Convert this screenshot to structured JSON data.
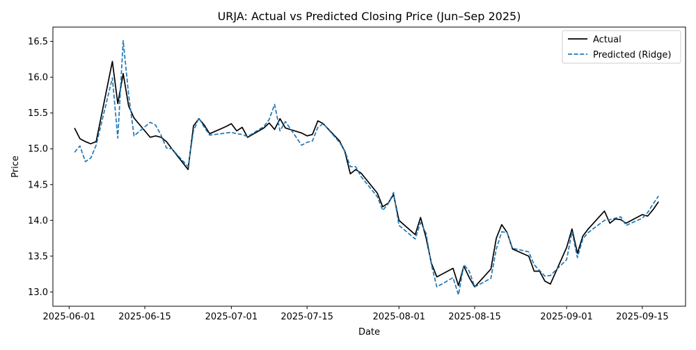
{
  "chart_data": {
    "type": "line",
    "title": "URJA: Actual vs Predicted Closing Price (Jun–Sep 2025)",
    "xlabel": "Date",
    "ylabel": "Price",
    "x_range": [
      "2025-05-29",
      "2025-09-23"
    ],
    "ylim": [
      12.8,
      16.7
    ],
    "grid": false,
    "legend_position": "top-right",
    "x_ticks": [
      {
        "date": "2025-06-01",
        "label": "2025-06-01"
      },
      {
        "date": "2025-06-15",
        "label": "2025-06-15"
      },
      {
        "date": "2025-07-01",
        "label": "2025-07-01"
      },
      {
        "date": "2025-07-15",
        "label": "2025-07-15"
      },
      {
        "date": "2025-08-01",
        "label": "2025-08-01"
      },
      {
        "date": "2025-08-15",
        "label": "2025-08-15"
      },
      {
        "date": "2025-09-01",
        "label": "2025-09-01"
      },
      {
        "date": "2025-09-15",
        "label": "2025-09-15"
      }
    ],
    "y_ticks": [
      {
        "value": 13.0,
        "label": "13.0"
      },
      {
        "value": 13.5,
        "label": "13.5"
      },
      {
        "value": 14.0,
        "label": "14.0"
      },
      {
        "value": 14.5,
        "label": "14.5"
      },
      {
        "value": 15.0,
        "label": "15.0"
      },
      {
        "value": 15.5,
        "label": "15.5"
      },
      {
        "value": 16.0,
        "label": "16.0"
      },
      {
        "value": 16.5,
        "label": "16.5"
      }
    ],
    "x": [
      "2025-06-02",
      "2025-06-03",
      "2025-06-04",
      "2025-06-05",
      "2025-06-06",
      "2025-06-09",
      "2025-06-10",
      "2025-06-11",
      "2025-06-12",
      "2025-06-13",
      "2025-06-16",
      "2025-06-17",
      "2025-06-18",
      "2025-06-19",
      "2025-06-20",
      "2025-06-23",
      "2025-06-24",
      "2025-06-25",
      "2025-06-26",
      "2025-06-27",
      "2025-06-30",
      "2025-07-01",
      "2025-07-02",
      "2025-07-03",
      "2025-07-04",
      "2025-07-07",
      "2025-07-08",
      "2025-07-09",
      "2025-07-10",
      "2025-07-11",
      "2025-07-14",
      "2025-07-15",
      "2025-07-16",
      "2025-07-17",
      "2025-07-18",
      "2025-07-21",
      "2025-07-22",
      "2025-07-23",
      "2025-07-24",
      "2025-07-25",
      "2025-07-28",
      "2025-07-29",
      "2025-07-30",
      "2025-07-31",
      "2025-08-01",
      "2025-08-04",
      "2025-08-05",
      "2025-08-06",
      "2025-08-07",
      "2025-08-08",
      "2025-08-11",
      "2025-08-12",
      "2025-08-13",
      "2025-08-14",
      "2025-08-15",
      "2025-08-18",
      "2025-08-19",
      "2025-08-20",
      "2025-08-21",
      "2025-08-22",
      "2025-08-25",
      "2025-08-26",
      "2025-08-27",
      "2025-08-28",
      "2025-08-29",
      "2025-09-01",
      "2025-09-02",
      "2025-09-03",
      "2025-09-04",
      "2025-09-05",
      "2025-09-08",
      "2025-09-09",
      "2025-09-10",
      "2025-09-11",
      "2025-09-12",
      "2025-09-15",
      "2025-09-16",
      "2025-09-17",
      "2025-09-18"
    ],
    "series": [
      {
        "name": "Actual",
        "color": "#000000",
        "style": "solid",
        "values": [
          15.29,
          15.14,
          15.1,
          15.07,
          15.1,
          16.22,
          15.63,
          16.05,
          15.6,
          15.43,
          15.16,
          15.18,
          15.16,
          15.1,
          15.0,
          14.71,
          15.32,
          15.42,
          15.33,
          15.21,
          15.31,
          15.35,
          15.25,
          15.3,
          15.16,
          15.29,
          15.36,
          15.27,
          15.42,
          15.29,
          15.22,
          15.18,
          15.2,
          15.39,
          15.35,
          15.11,
          14.96,
          14.65,
          14.71,
          14.66,
          14.38,
          14.19,
          14.24,
          14.36,
          14.0,
          13.8,
          14.04,
          13.76,
          13.4,
          13.21,
          13.33,
          13.09,
          13.36,
          13.2,
          13.07,
          13.32,
          13.75,
          13.94,
          13.83,
          13.6,
          13.5,
          13.29,
          13.29,
          13.15,
          13.11,
          13.62,
          13.88,
          13.54,
          13.78,
          13.88,
          14.13,
          13.96,
          14.02,
          14.01,
          13.96,
          14.08,
          14.06,
          14.15,
          14.26
        ]
      },
      {
        "name": "Predicted (Ridge)",
        "color": "#1f77b4",
        "style": "dashed",
        "values": [
          14.95,
          15.04,
          14.82,
          14.87,
          15.05,
          15.99,
          15.15,
          16.51,
          15.76,
          15.18,
          15.37,
          15.33,
          15.19,
          15.01,
          15.0,
          14.75,
          15.25,
          15.43,
          15.3,
          15.19,
          15.22,
          15.23,
          15.21,
          15.2,
          15.17,
          15.31,
          15.41,
          15.62,
          15.25,
          15.38,
          15.05,
          15.09,
          15.11,
          15.3,
          15.35,
          15.09,
          14.97,
          14.75,
          14.75,
          14.61,
          14.33,
          14.14,
          14.23,
          14.39,
          13.93,
          13.74,
          13.97,
          13.82,
          13.38,
          13.07,
          13.2,
          12.96,
          13.38,
          13.29,
          13.07,
          13.19,
          13.6,
          13.84,
          13.83,
          13.61,
          13.56,
          13.38,
          13.3,
          13.22,
          13.23,
          13.45,
          13.84,
          13.48,
          13.74,
          13.83,
          14.0,
          14.01,
          14.03,
          14.05,
          13.93,
          14.03,
          14.11,
          14.23,
          14.34
        ]
      }
    ]
  }
}
